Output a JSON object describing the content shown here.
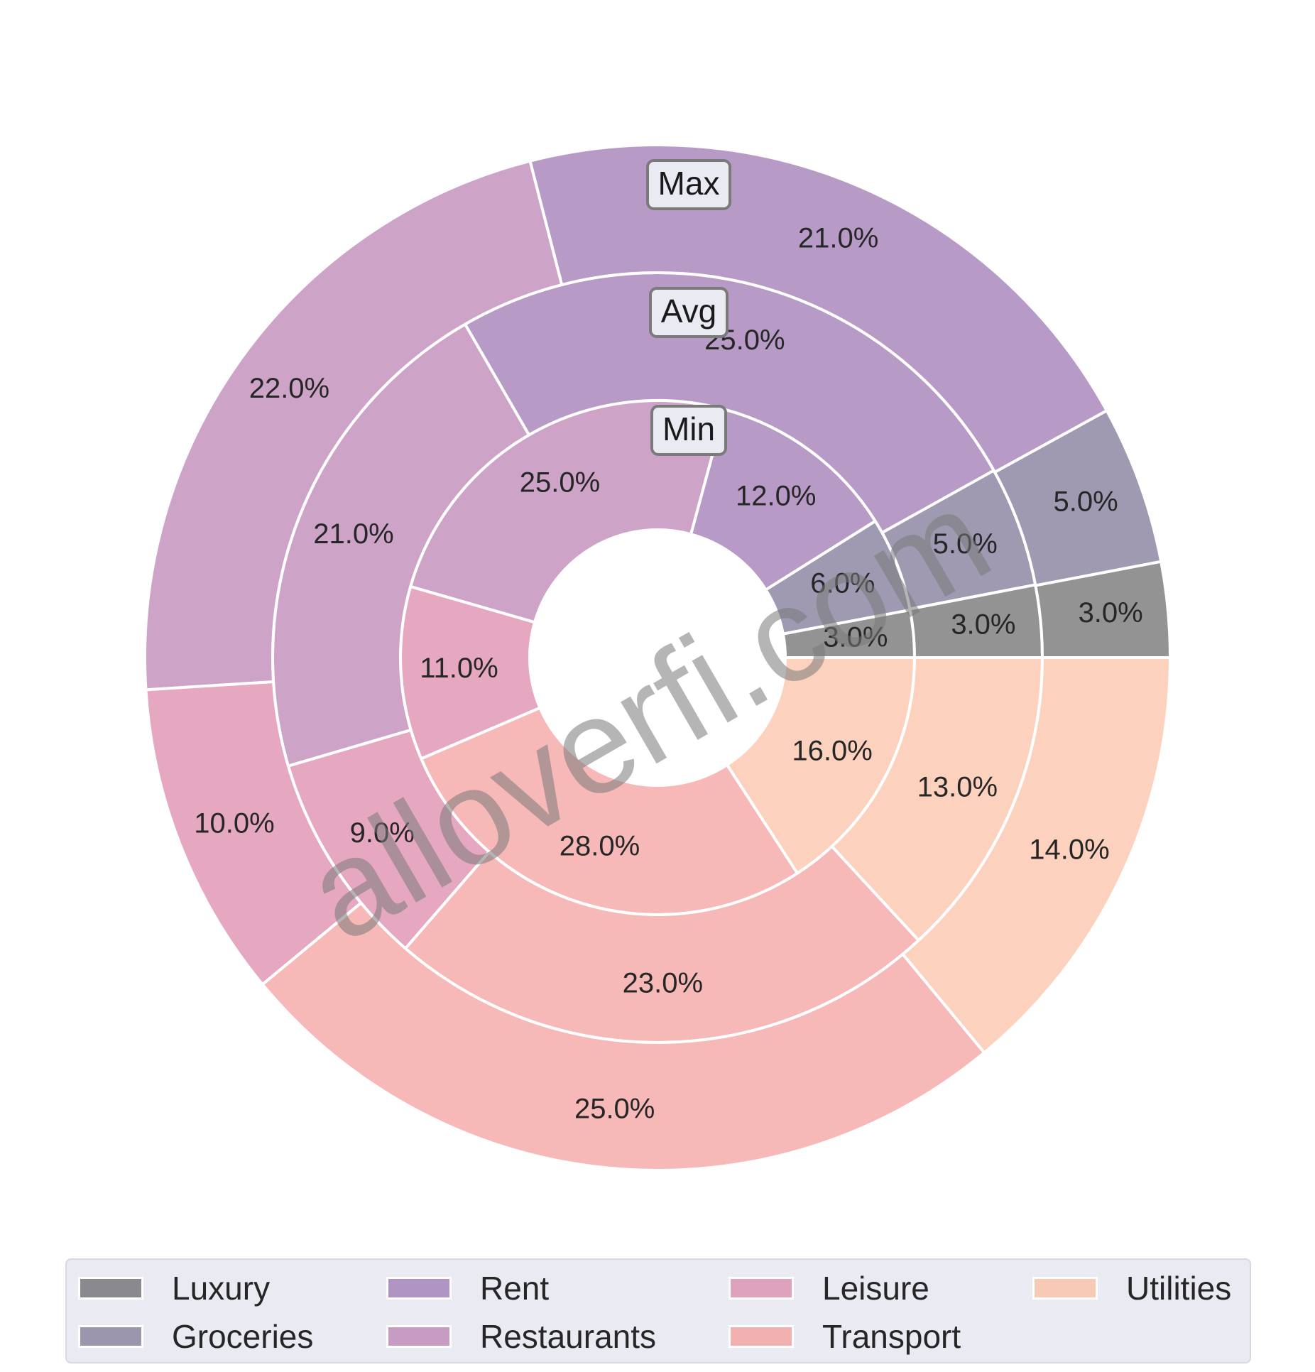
{
  "watermark": "alloverfi.com",
  "chart_data": {
    "type": "pie",
    "subtype": "nested-donut",
    "categories": [
      "Luxury",
      "Groceries",
      "Rent",
      "Restaurants",
      "Leisure",
      "Transport",
      "Utilities"
    ],
    "colors": [
      "#939393",
      "#9f9ab1",
      "#b79bc6",
      "#cea3c8",
      "#e5a8c0",
      "#f7b8b8",
      "#fcd2be"
    ],
    "legend_colors": [
      "#8a8a8e",
      "#9b95ad",
      "#b094c3",
      "#c89bc2",
      "#dea2bc",
      "#f2afaf",
      "#f7cab6"
    ],
    "series": [
      {
        "name": "Min",
        "values": [
          3.0,
          6.0,
          12.0,
          25.0,
          11.0,
          28.0,
          16.0
        ],
        "labels": [
          "3.0%",
          "6.0%",
          "12.0%",
          "25.0%",
          "11.0%",
          "28.0%",
          "16.0%"
        ]
      },
      {
        "name": "Avg",
        "values": [
          3.0,
          5.0,
          25.0,
          21.0,
          9.0,
          23.0,
          13.0
        ],
        "labels": [
          "3.0%",
          "5.0%",
          "25.0%",
          "21.0%",
          "9.0%",
          "23.0%",
          "13.0%"
        ]
      },
      {
        "name": "Max",
        "values": [
          3.0,
          5.0,
          21.0,
          22.0,
          10.0,
          25.0,
          14.0
        ],
        "labels": [
          "3.0%",
          "5.0%",
          "21.0%",
          "22.0%",
          "10.0%",
          "25.0%",
          "14.0%"
        ]
      }
    ],
    "legend": {
      "placement": "bottom",
      "items": [
        "Luxury",
        "Rent",
        "Leisure",
        "Utilities",
        "Groceries",
        "Restaurants",
        "Transport"
      ]
    }
  }
}
